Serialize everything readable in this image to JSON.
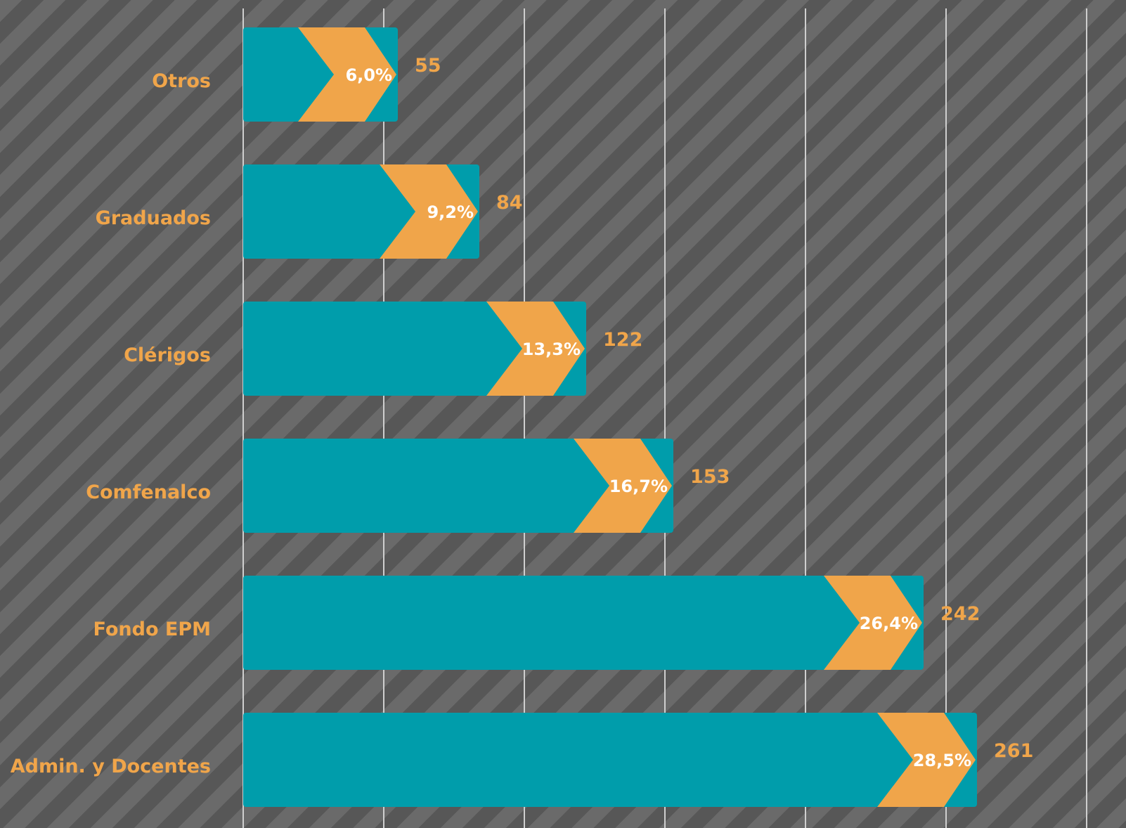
{
  "chart_data": {
    "type": "bar",
    "orientation": "horizontal",
    "categories": [
      "Otros",
      "Graduados",
      "Clérigos",
      "Comfenalco",
      "Fondo EPM",
      "Admin. y Docentes"
    ],
    "values": [
      55,
      84,
      122,
      153,
      242,
      261
    ],
    "percent_labels": [
      "6,0%",
      "9,2%",
      "13,3%",
      "16,7%",
      "26,4%",
      "28,5%"
    ],
    "value_labels": [
      "55",
      "84",
      "122",
      "153",
      "242",
      "261"
    ],
    "xlim": [
      0,
      300
    ],
    "grid": true,
    "gridline_count": 7,
    "legend": "none"
  },
  "colors": {
    "bar": "#009dab",
    "chevron": "#f0a54a",
    "gridline": "#cfcfcf",
    "label": "#f0a54a",
    "percent_text": "#ffffff"
  }
}
